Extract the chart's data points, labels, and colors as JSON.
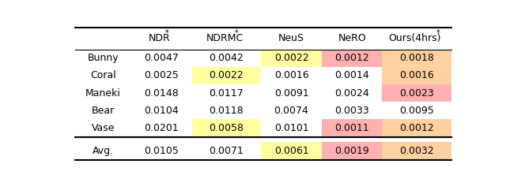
{
  "columns": [
    "",
    "NDR*",
    "NDRMC*",
    "NeuS",
    "NeRO",
    "Ours(4hrs)*"
  ],
  "rows": [
    "Bunny",
    "Coral",
    "Maneki",
    "Bear",
    "Vase"
  ],
  "avg_row": "Avg.",
  "values": [
    [
      0.0047,
      0.0042,
      0.0022,
      0.0012,
      0.0018
    ],
    [
      0.0025,
      0.0022,
      0.0016,
      0.0014,
      0.0016
    ],
    [
      0.0148,
      0.0117,
      0.0091,
      0.0024,
      0.0023
    ],
    [
      0.0104,
      0.0118,
      0.0074,
      0.0033,
      0.0095
    ],
    [
      0.0201,
      0.0058,
      0.0101,
      0.0011,
      0.0012
    ]
  ],
  "avg_values": [
    0.0105,
    0.0071,
    0.0061,
    0.0019,
    0.0032
  ],
  "cell_colors": [
    [
      "none",
      "none",
      "yellow",
      "pink",
      "orange"
    ],
    [
      "none",
      "yellow",
      "none",
      "none",
      "orange"
    ],
    [
      "none",
      "none",
      "none",
      "none",
      "pink"
    ],
    [
      "none",
      "none",
      "none",
      "none",
      "none"
    ],
    [
      "none",
      "yellow",
      "none",
      "pink",
      "orange"
    ]
  ],
  "avg_colors": [
    "none",
    "none",
    "yellow",
    "pink",
    "orange"
  ],
  "color_map": {
    "yellow": "#FFFFA0",
    "pink": "#FFB0B0",
    "orange": "#FFD0A0",
    "none": "none"
  },
  "figsize": [
    6.4,
    2.22
  ],
  "dpi": 100
}
